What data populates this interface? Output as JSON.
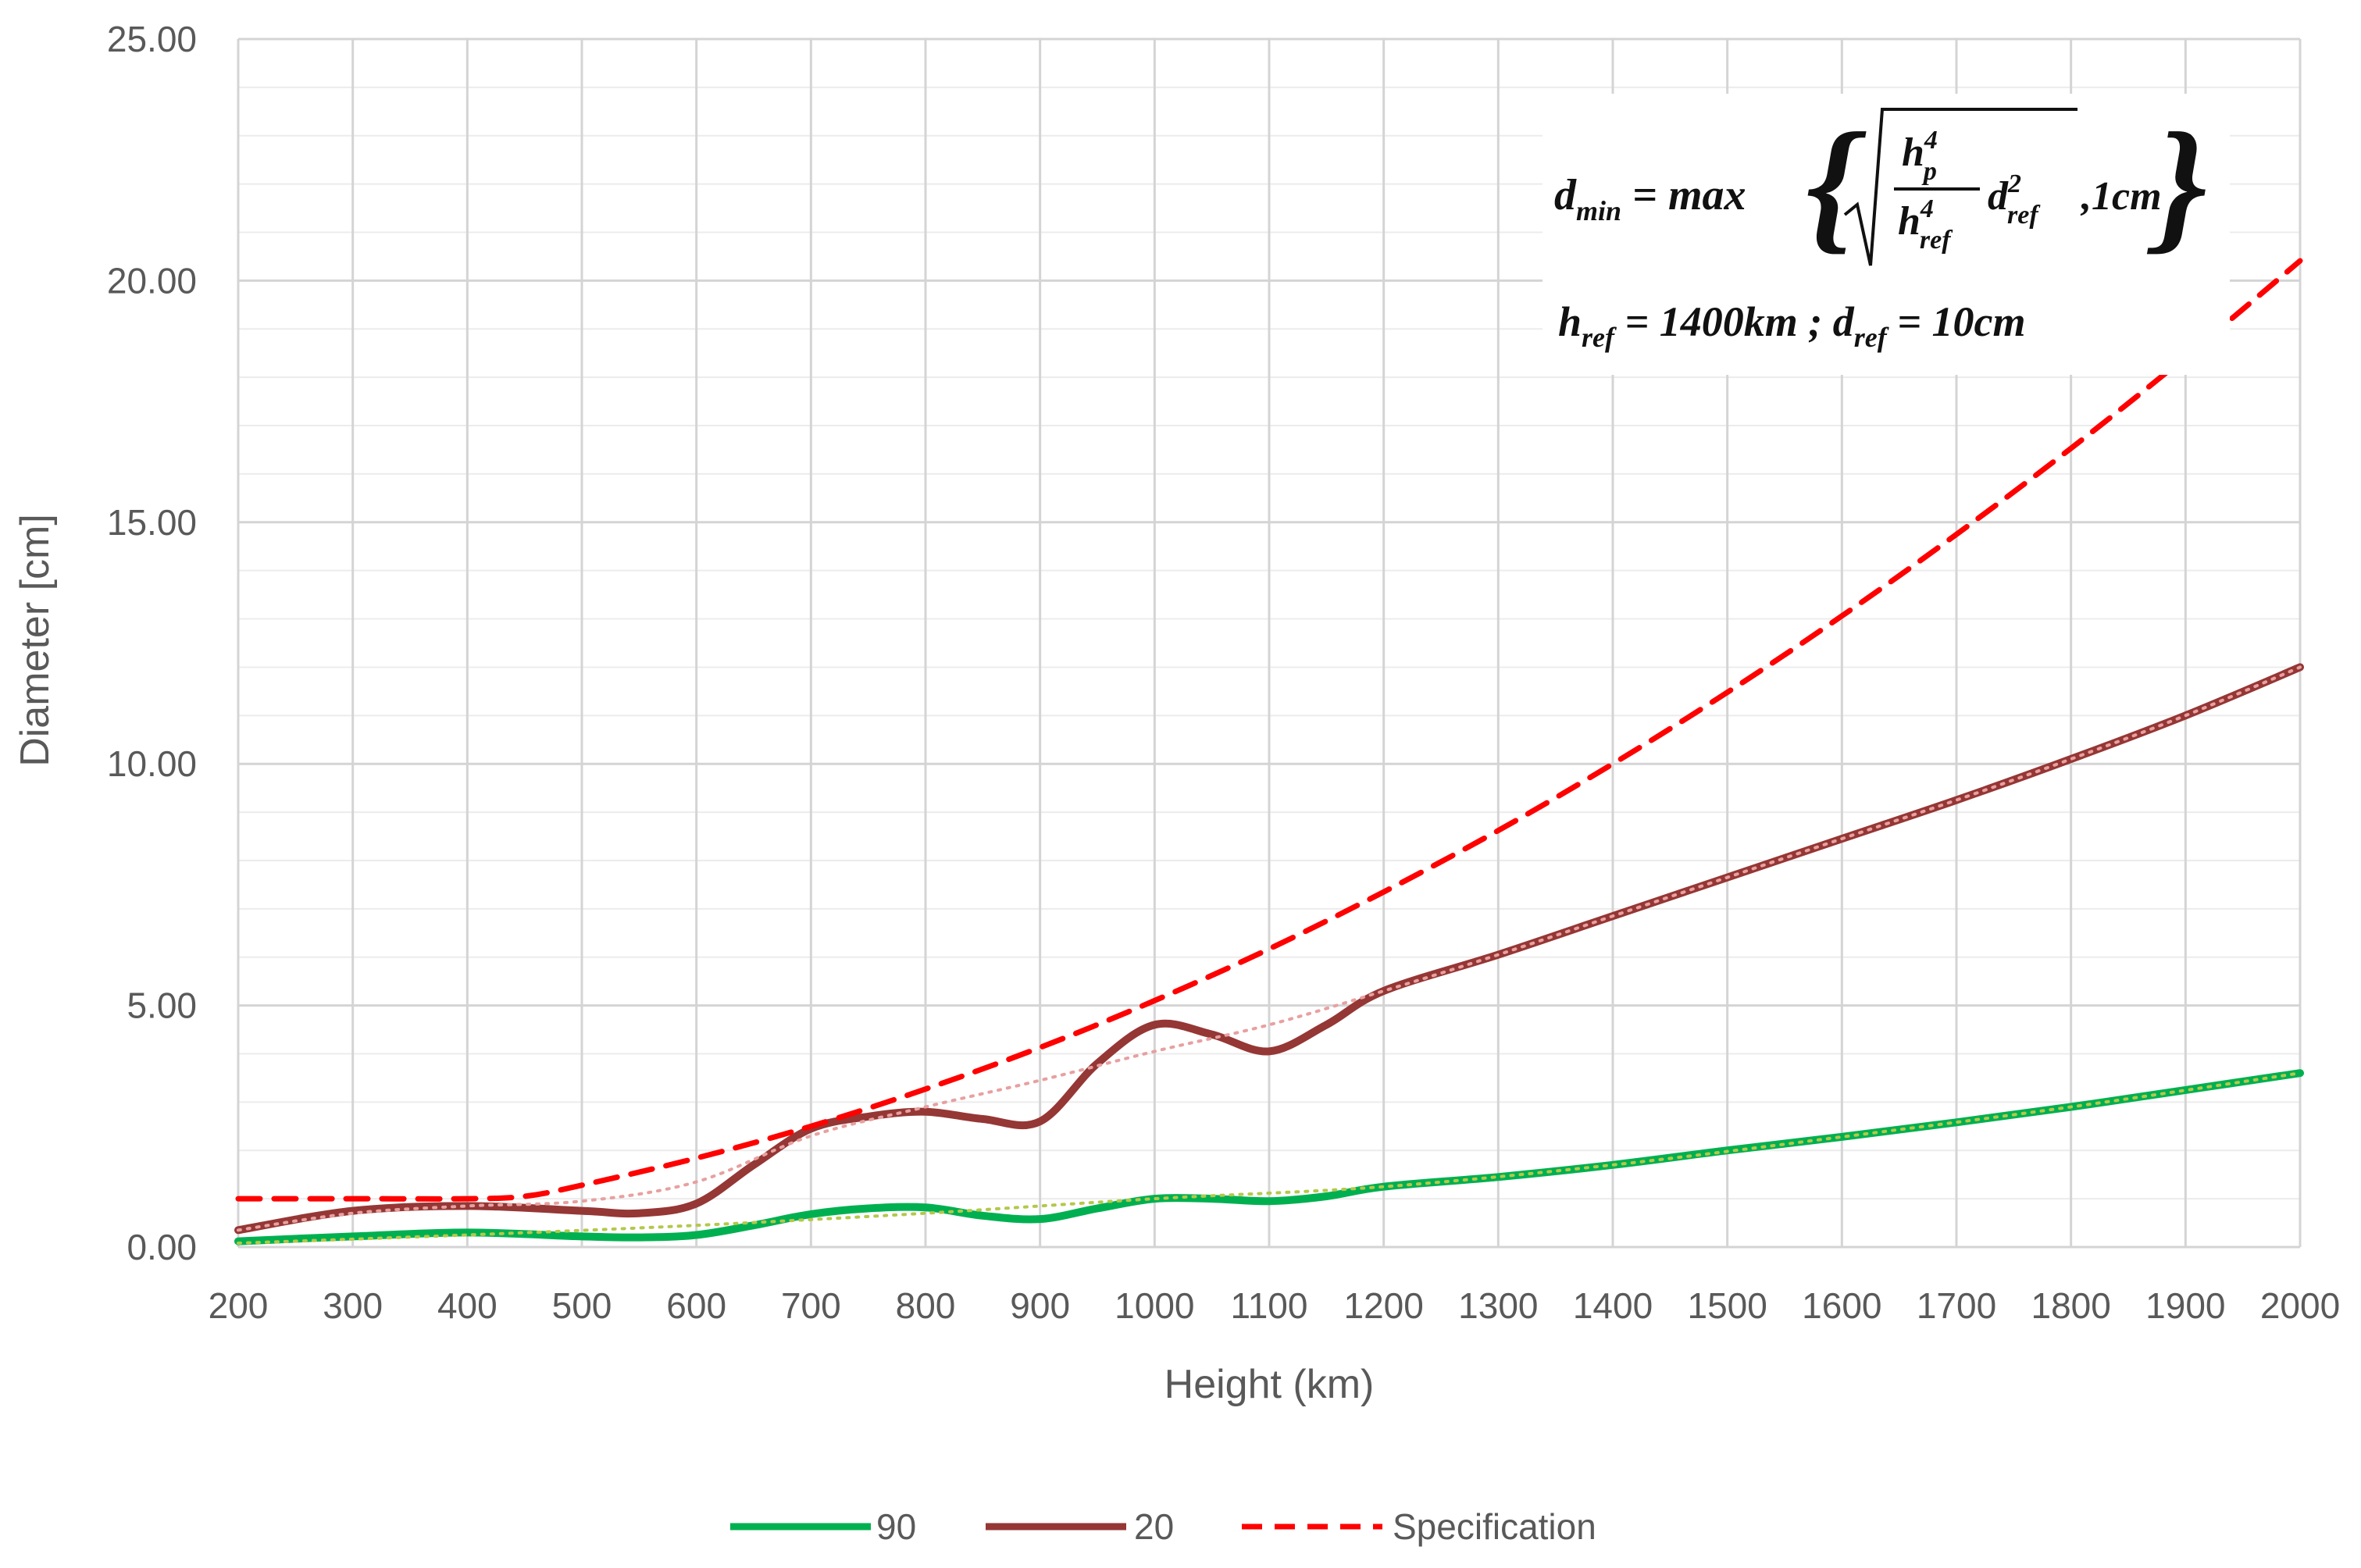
{
  "chart_data": {
    "type": "line",
    "title": "",
    "xlabel": "Height (km)",
    "ylabel": "Diameter [cm]",
    "xlim": [
      200,
      2000
    ],
    "ylim": [
      0,
      25
    ],
    "x_ticks": [
      "200",
      "300",
      "400",
      "500",
      "600",
      "700",
      "800",
      "900",
      "1000",
      "1100",
      "1200",
      "1300",
      "1400",
      "1500",
      "1600",
      "1700",
      "1800",
      "1900",
      "2000"
    ],
    "y_ticks": [
      "0.00",
      "5.00",
      "10.00",
      "15.00",
      "20.00",
      "25.00"
    ],
    "grid": true,
    "legend_position": "bottom",
    "series": [
      {
        "name": "90",
        "color": "#00b050",
        "style": "solid",
        "x": [
          200,
          300,
          400,
          500,
          550,
          600,
          650,
          700,
          750,
          800,
          850,
          900,
          950,
          1000,
          1050,
          1100,
          1150,
          1200,
          1300,
          1400,
          1500,
          1600,
          1700,
          1800,
          1900,
          2000
        ],
        "y": [
          0.12,
          0.22,
          0.3,
          0.22,
          0.2,
          0.25,
          0.45,
          0.68,
          0.8,
          0.82,
          0.65,
          0.58,
          0.8,
          1.0,
          1.0,
          0.95,
          1.05,
          1.25,
          1.45,
          1.7,
          2.0,
          2.28,
          2.58,
          2.9,
          3.25,
          3.6
        ],
        "trend": {
          "color": "#b4c84a",
          "x": [
            200,
            400,
            600,
            800,
            1000,
            1200,
            1400,
            1600,
            1800,
            2000
          ],
          "y": [
            0.08,
            0.25,
            0.45,
            0.7,
            1.0,
            1.25,
            1.7,
            2.28,
            2.9,
            3.6
          ]
        }
      },
      {
        "name": "20",
        "color": "#953735",
        "style": "solid",
        "x": [
          200,
          300,
          400,
          500,
          550,
          600,
          650,
          700,
          750,
          800,
          850,
          900,
          950,
          1000,
          1050,
          1100,
          1150,
          1200,
          1300,
          1400,
          1500,
          1600,
          1700,
          1800,
          1900,
          2000
        ],
        "y": [
          0.35,
          0.75,
          0.85,
          0.75,
          0.7,
          0.9,
          1.7,
          2.45,
          2.7,
          2.8,
          2.65,
          2.6,
          3.8,
          4.6,
          4.4,
          4.05,
          4.6,
          5.3,
          6.05,
          6.85,
          7.65,
          8.45,
          9.25,
          10.1,
          11.0,
          12.0
        ],
        "trend": {
          "color": "#e8a0a0",
          "x": [
            200,
            300,
            400,
            500,
            600,
            700,
            800,
            900,
            1000,
            1100,
            1200,
            1300,
            1400,
            1500,
            1600,
            1700,
            1800,
            1900,
            2000
          ],
          "y": [
            0.35,
            0.7,
            0.85,
            0.95,
            1.35,
            2.3,
            2.9,
            3.45,
            4.05,
            4.6,
            5.3,
            6.05,
            6.85,
            7.65,
            8.45,
            9.25,
            10.1,
            11.0,
            12.0
          ]
        }
      },
      {
        "name": "Specification",
        "color": "#ff0000",
        "style": "dashed",
        "x": [
          200,
          300,
          400,
          450,
          500,
          600,
          700,
          800,
          900,
          1000,
          1100,
          1200,
          1300,
          1400,
          1500,
          1600,
          1700,
          1800,
          1900,
          2000
        ],
        "y": [
          1.0,
          1.0,
          1.0,
          1.05,
          1.28,
          1.84,
          2.5,
          3.27,
          4.13,
          5.1,
          6.17,
          7.35,
          8.62,
          10.0,
          11.48,
          13.06,
          14.75,
          16.53,
          18.42,
          20.41
        ]
      }
    ],
    "annotation": {
      "formula_lhs": "d",
      "formula_lhs_sub": "min",
      "formula_eq": " = max",
      "frac_num": "h",
      "frac_num_sup": "4",
      "frac_num_sub": "p",
      "frac_den": "h",
      "frac_den_sup": "4",
      "frac_den_sub": "ref",
      "dref_var": "d",
      "dref_sup": "2",
      "dref_sub": "ref",
      "min_value": " ,1cm",
      "href_var": "h",
      "href_sub": "ref",
      "href_value": " = 1400km ; ",
      "dref2_var": "d",
      "dref2_sub": "ref",
      "dref2_value": " = 10cm"
    }
  }
}
